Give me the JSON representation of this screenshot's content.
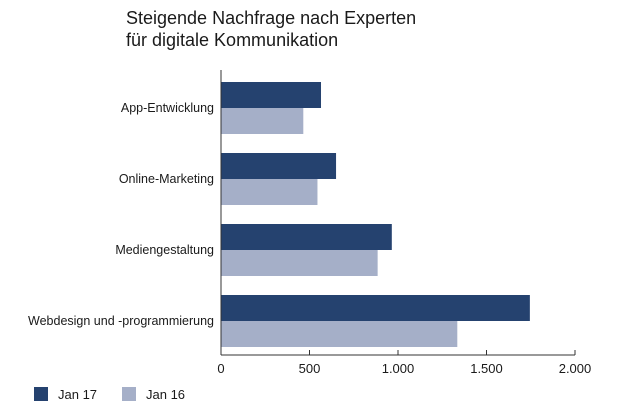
{
  "title_lines": [
    "Steigende Nachfrage nach Experten",
    "für digitale Kommunikation"
  ],
  "colors": {
    "series_1": "#25426f",
    "series_2": "#a5afc8",
    "axis": "#333333",
    "text": "#1a1a1a"
  },
  "chart_data": {
    "type": "bar",
    "orientation": "horizontal",
    "title": "Steigende Nachfrage nach Experten für digitale Kommunikation",
    "categories": [
      "App-Entwicklung",
      "Online-Marketing",
      "Mediengestaltung",
      "Webdesign und -programmierung"
    ],
    "series": [
      {
        "name": "Jan 17",
        "color": "#25426f",
        "values": [
          565,
          650,
          965,
          1745
        ]
      },
      {
        "name": "Jan 16",
        "color": "#a5afc8",
        "values": [
          465,
          545,
          885,
          1335
        ]
      }
    ],
    "xlim": [
      0,
      2000
    ],
    "xticks": [
      0,
      500,
      1000,
      1500,
      2000
    ],
    "xtick_labels": [
      "0",
      "500",
      "1.000",
      "1.500",
      "2.000"
    ],
    "grid": false,
    "legend_position": "bottom-left"
  }
}
